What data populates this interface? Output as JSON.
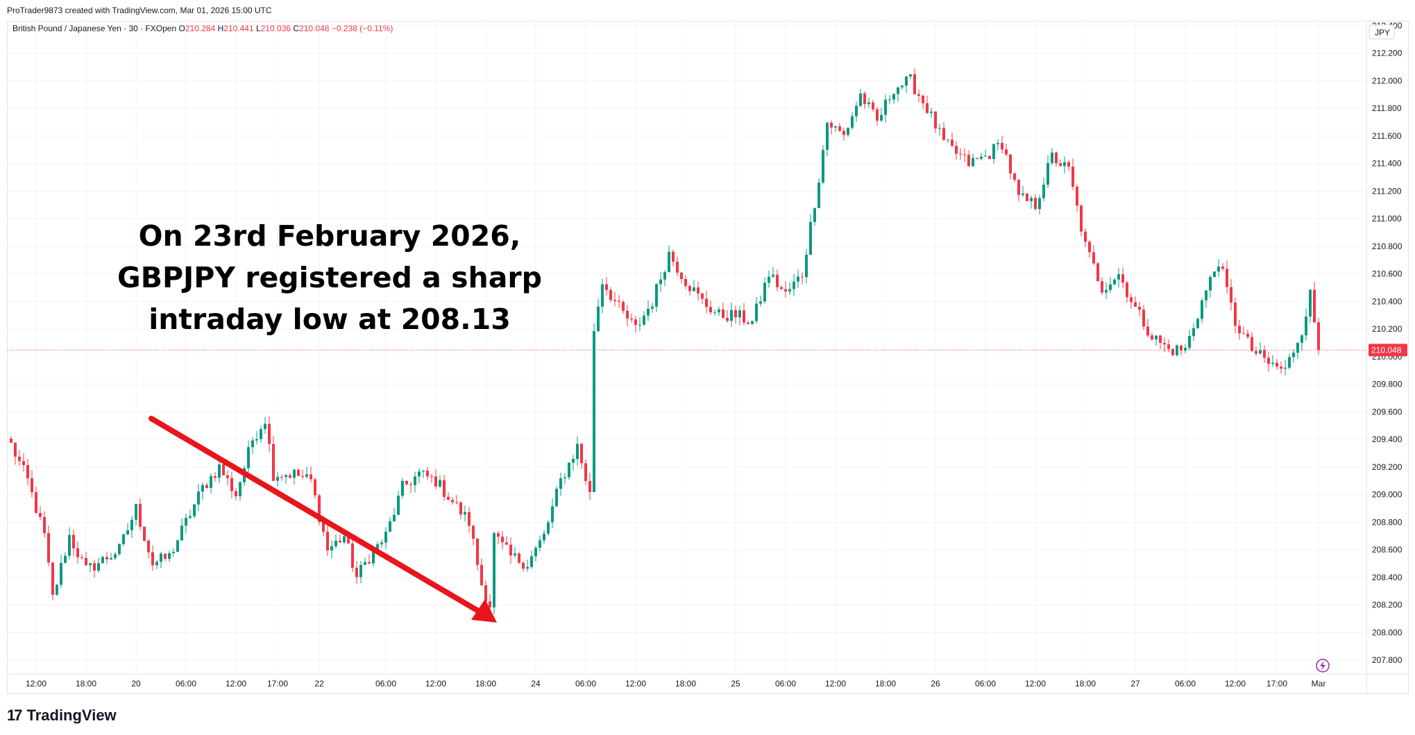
{
  "header": {
    "created_by": "ProTrader9873 created with TradingView.com, Mar 01, 2026 15:00 UTC"
  },
  "legend": {
    "symbol": "British Pound / Japanese Yen · 30 · FXOpen",
    "o_label": "O",
    "o_value": "210.284",
    "h_label": "H",
    "h_value": "210.441",
    "l_label": "L",
    "l_value": "210.036",
    "c_label": "C",
    "c_value": "210.048",
    "change": "−0.238 (−0.11%)"
  },
  "annotation": {
    "text": "On 23rd February 2026, GBPJPY registered a sharp intraday low at 208.13"
  },
  "brand": {
    "name": "TradingView"
  },
  "colors": {
    "up": "#089981",
    "down": "#f23645",
    "arrow": "#e8161c",
    "grid": "#f0f3fa"
  },
  "chart_data": {
    "type": "candlestick",
    "symbol": "GBPJPY",
    "currency_label": "JPY",
    "ylim": [
      207.7,
      212.43
    ],
    "y_ticks": [
      "212.400",
      "212.200",
      "212.000",
      "211.800",
      "211.600",
      "211.400",
      "211.200",
      "211.000",
      "210.800",
      "210.600",
      "210.400",
      "210.200",
      "210.000",
      "209.800",
      "209.600",
      "209.400",
      "209.200",
      "209.000",
      "208.800",
      "208.600",
      "208.400",
      "208.200",
      "208.000",
      "207.800"
    ],
    "x_ticks": [
      {
        "label": "12:00",
        "bar": 6
      },
      {
        "label": "18:00",
        "bar": 18
      },
      {
        "label": "20",
        "bar": 30
      },
      {
        "label": "06:00",
        "bar": 42
      },
      {
        "label": "12:00",
        "bar": 54
      },
      {
        "label": "17:00",
        "bar": 64
      },
      {
        "label": "22",
        "bar": 74
      },
      {
        "label": "06:00",
        "bar": 90
      },
      {
        "label": "12:00",
        "bar": 102
      },
      {
        "label": "18:00",
        "bar": 114
      },
      {
        "label": "24",
        "bar": 126
      },
      {
        "label": "06:00",
        "bar": 138
      },
      {
        "label": "12:00",
        "bar": 150
      },
      {
        "label": "18:00",
        "bar": 162
      },
      {
        "label": "25",
        "bar": 174
      },
      {
        "label": "06:00",
        "bar": 186
      },
      {
        "label": "12:00",
        "bar": 198
      },
      {
        "label": "18:00",
        "bar": 210
      },
      {
        "label": "26",
        "bar": 222
      },
      {
        "label": "06:00",
        "bar": 234
      },
      {
        "label": "12:00",
        "bar": 246
      },
      {
        "label": "18:00",
        "bar": 258
      },
      {
        "label": "27",
        "bar": 270
      },
      {
        "label": "06:00",
        "bar": 282
      },
      {
        "label": "12:00",
        "bar": 294
      },
      {
        "label": "17:00",
        "bar": 304
      },
      {
        "label": "Mar",
        "bar": 314
      }
    ],
    "last_price": "210.048",
    "anchors": [
      [
        0,
        209.36
      ],
      [
        4,
        209.1
      ],
      [
        8,
        208.7
      ],
      [
        10,
        208.25
      ],
      [
        14,
        208.7
      ],
      [
        18,
        208.45
      ],
      [
        26,
        208.6
      ],
      [
        30,
        208.9
      ],
      [
        34,
        208.5
      ],
      [
        38,
        208.55
      ],
      [
        42,
        208.8
      ],
      [
        46,
        209.05
      ],
      [
        50,
        209.2
      ],
      [
        54,
        209.0
      ],
      [
        58,
        209.4
      ],
      [
        61,
        209.55
      ],
      [
        63,
        209.15
      ],
      [
        68,
        209.15
      ],
      [
        72,
        209.1
      ],
      [
        76,
        208.6
      ],
      [
        80,
        208.7
      ],
      [
        83,
        208.4
      ],
      [
        86,
        208.55
      ],
      [
        90,
        208.7
      ],
      [
        94,
        209.05
      ],
      [
        98,
        209.15
      ],
      [
        102,
        209.1
      ],
      [
        106,
        208.95
      ],
      [
        110,
        208.8
      ],
      [
        113,
        208.35
      ],
      [
        115,
        208.2
      ],
      [
        116,
        208.7
      ],
      [
        120,
        208.55
      ],
      [
        124,
        208.5
      ],
      [
        128,
        208.7
      ],
      [
        132,
        209.1
      ],
      [
        136,
        209.35
      ],
      [
        139,
        209.0
      ],
      [
        140,
        210.2
      ],
      [
        142,
        210.55
      ],
      [
        146,
        210.35
      ],
      [
        150,
        210.2
      ],
      [
        154,
        210.4
      ],
      [
        158,
        210.75
      ],
      [
        162,
        210.55
      ],
      [
        166,
        210.4
      ],
      [
        170,
        210.3
      ],
      [
        174,
        210.3
      ],
      [
        178,
        210.25
      ],
      [
        182,
        210.6
      ],
      [
        186,
        210.45
      ],
      [
        190,
        210.6
      ],
      [
        194,
        211.3
      ],
      [
        196,
        211.7
      ],
      [
        200,
        211.6
      ],
      [
        204,
        211.9
      ],
      [
        208,
        211.7
      ],
      [
        212,
        211.95
      ],
      [
        216,
        212.0
      ],
      [
        220,
        211.8
      ],
      [
        224,
        211.55
      ],
      [
        230,
        211.4
      ],
      [
        234,
        211.45
      ],
      [
        238,
        211.55
      ],
      [
        242,
        211.15
      ],
      [
        246,
        211.1
      ],
      [
        250,
        211.45
      ],
      [
        254,
        211.35
      ],
      [
        258,
        210.8
      ],
      [
        262,
        210.5
      ],
      [
        266,
        210.6
      ],
      [
        270,
        210.35
      ],
      [
        274,
        210.15
      ],
      [
        278,
        210.05
      ],
      [
        282,
        210.05
      ],
      [
        286,
        210.4
      ],
      [
        290,
        210.7
      ],
      [
        294,
        210.25
      ],
      [
        298,
        210.05
      ],
      [
        302,
        209.95
      ],
      [
        306,
        209.9
      ],
      [
        310,
        210.2
      ],
      [
        312,
        210.45
      ],
      [
        314,
        210.05
      ]
    ]
  }
}
